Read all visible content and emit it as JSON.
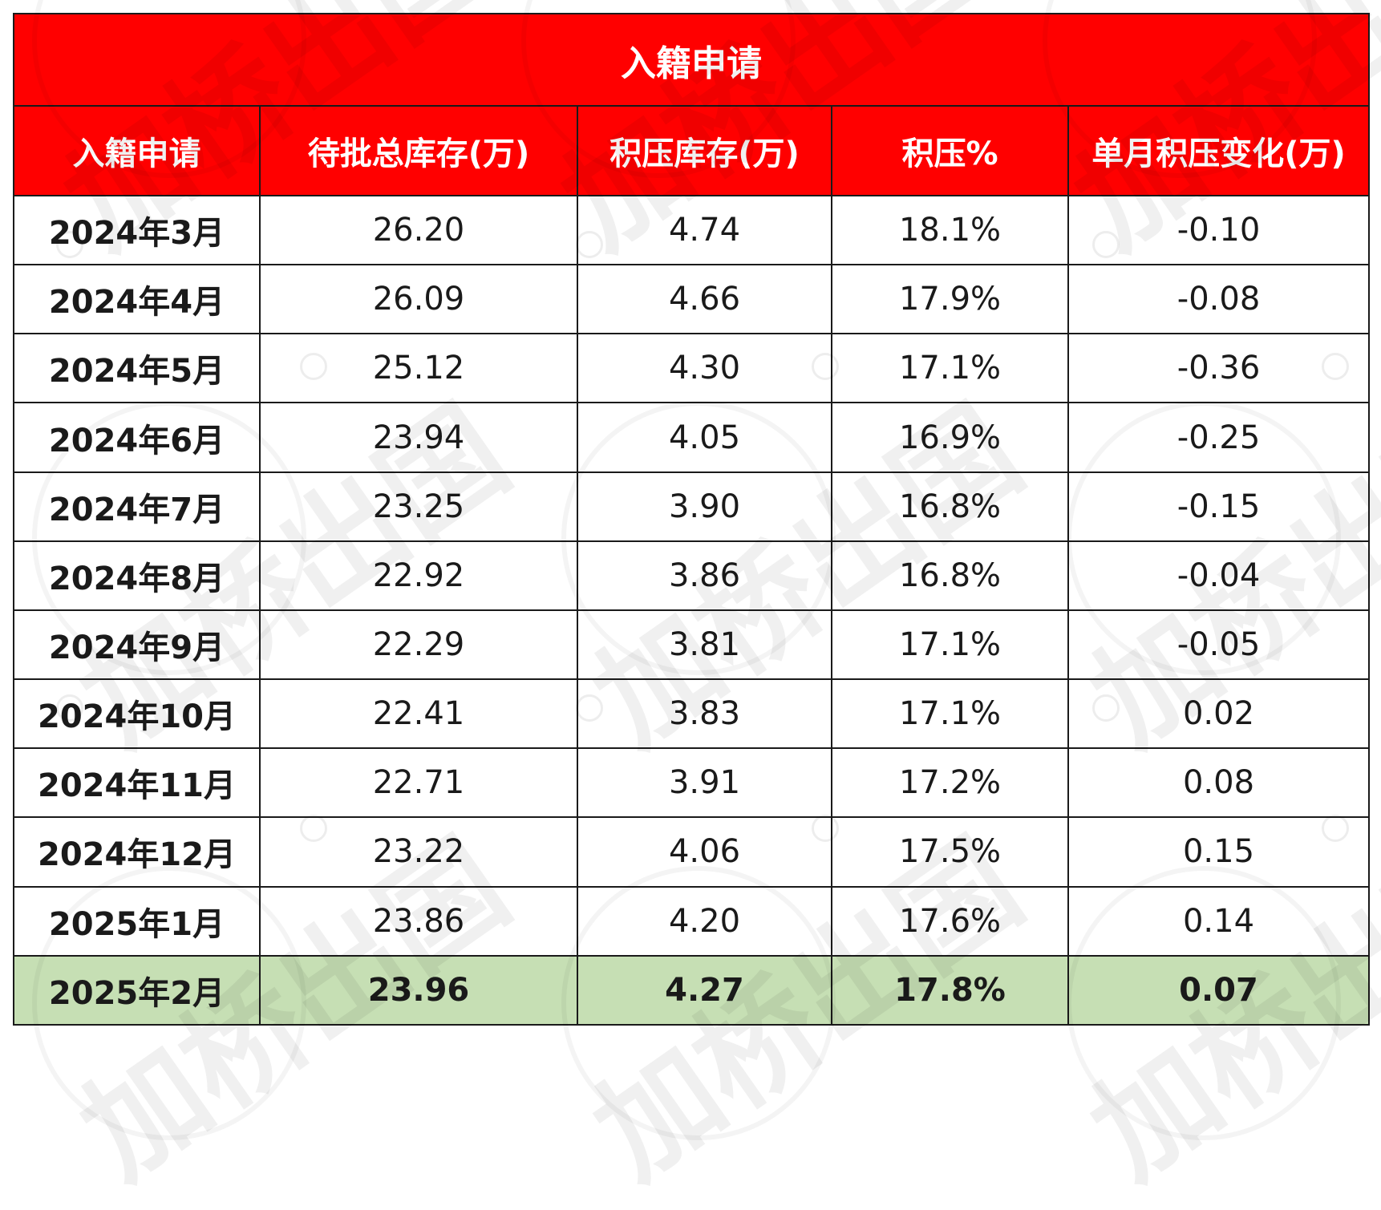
{
  "table": {
    "title": "入籍申请",
    "columns": [
      "入籍申请",
      "待批总库存(万)",
      "积压库存(万)",
      "积压%",
      "单月积压变化(万)"
    ],
    "rows": [
      [
        "2024年3月",
        "26.20",
        "4.74",
        "18.1%",
        "-0.10"
      ],
      [
        "2024年4月",
        "26.09",
        "4.66",
        "17.9%",
        "-0.08"
      ],
      [
        "2024年5月",
        "25.12",
        "4.30",
        "17.1%",
        "-0.36"
      ],
      [
        "2024年6月",
        "23.94",
        "4.05",
        "16.9%",
        "-0.25"
      ],
      [
        "2024年7月",
        "23.25",
        "3.90",
        "16.8%",
        "-0.15"
      ],
      [
        "2024年8月",
        "22.92",
        "3.86",
        "16.8%",
        "-0.04"
      ],
      [
        "2024年9月",
        "22.29",
        "3.81",
        "17.1%",
        "-0.05"
      ],
      [
        "2024年10月",
        "22.41",
        "3.83",
        "17.1%",
        "0.02"
      ],
      [
        "2024年11月",
        "22.71",
        "3.91",
        "17.2%",
        "0.08"
      ],
      [
        "2024年12月",
        "23.22",
        "4.06",
        "17.5%",
        "0.15"
      ],
      [
        "2025年1月",
        "23.86",
        "4.20",
        "17.6%",
        "0.14"
      ],
      [
        "2025年2月",
        "23.96",
        "4.27",
        "17.8%",
        "0.07"
      ]
    ],
    "highlight_row": 11
  },
  "watermark": {
    "text": "加桥出国"
  },
  "colors": {
    "header_bg": "#ff0000",
    "header_text": "#ffffff",
    "highlight_bg": "#c6dfb4",
    "border": "#1a1a1a"
  }
}
